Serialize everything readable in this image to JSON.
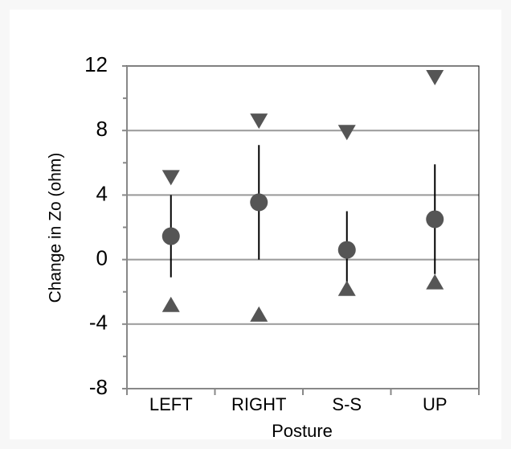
{
  "chart_data": {
    "type": "errorbar",
    "x_label": "Posture",
    "y_label": "Change in Zo (ohm)",
    "categories": [
      "LEFT",
      "RIGHT",
      "S-S",
      "UP"
    ],
    "series": [
      {
        "color": "#555555",
        "marker": "circle",
        "values": [
          1.45,
          3.55,
          0.6,
          2.5
        ],
        "errors": [
          2.55,
          3.55,
          2.4,
          3.4
        ]
      },
      {
        "color": "#555555",
        "marker": "triangle-down",
        "values": [
          5.1,
          8.6,
          7.9,
          11.3
        ]
      },
      {
        "color": "#555555",
        "marker": "triangle-up",
        "values": [
          -2.8,
          -3.4,
          -1.8,
          -1.4
        ]
      }
    ],
    "ylim": [
      -8,
      12
    ],
    "yticks": [
      -8,
      -4,
      0,
      4,
      8,
      12
    ],
    "minor_yticks": [
      -6,
      -2,
      2,
      6,
      10
    ],
    "grid": true
  }
}
